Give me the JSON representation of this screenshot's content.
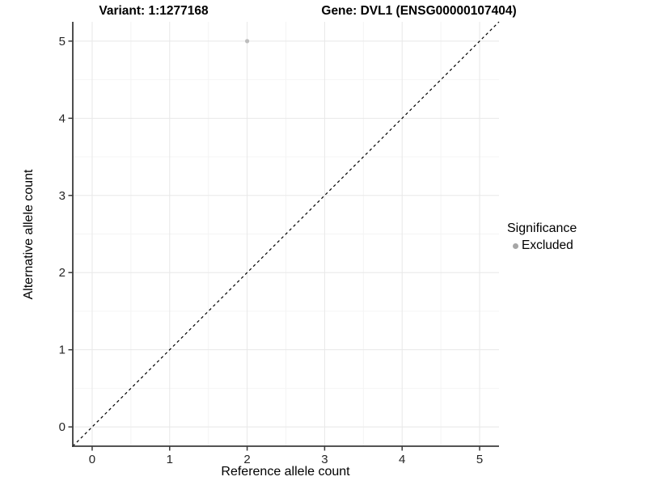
{
  "titles": {
    "variant_title": "Variant: 1:1277168",
    "gene_title": "Gene: DVL1 (ENSG00000107404)"
  },
  "axes": {
    "x_label": "Reference allele count",
    "y_label": "Alternative allele count"
  },
  "legend": {
    "title": "Significance",
    "items": [
      {
        "label": "Excluded",
        "color": "#a6a6a6",
        "marker": "circle"
      }
    ]
  },
  "chart_data": {
    "type": "scatter",
    "title": "Variant: 1:1277168 / Gene: DVL1 (ENSG00000107404)",
    "xlabel": "Reference allele count",
    "ylabel": "Alternative allele count",
    "xlim": [
      -0.25,
      5.25
    ],
    "ylim": [
      -0.25,
      5.25
    ],
    "x_ticks": [
      0,
      1,
      2,
      3,
      4,
      5
    ],
    "y_ticks": [
      0,
      1,
      2,
      3,
      4,
      5
    ],
    "x_minor_ticks": [
      0.5,
      1.5,
      2.5,
      3.5,
      4.5
    ],
    "y_minor_ticks": [
      0.5,
      1.5,
      2.5,
      3.5,
      4.5
    ],
    "grid": "on",
    "legend_position": "right",
    "legend_title": "Significance",
    "series": [
      {
        "name": "Excluded",
        "color": "#bdbdbd",
        "marker_radius": 2.6,
        "points": [
          {
            "x": 2,
            "y": 5
          }
        ]
      }
    ],
    "reference_line": {
      "kind": "identity",
      "equation": "y = x",
      "style": "dashed",
      "color": "#000000"
    }
  },
  "colors": {
    "background": "#ffffff",
    "grid_major": "#e8e8e8",
    "grid_minor": "#f4f4f4",
    "axis_line": "#3b3b3b",
    "tick_label": "#262626",
    "point": "#bdbdbd",
    "legend_marker": "#a6a6a6"
  }
}
